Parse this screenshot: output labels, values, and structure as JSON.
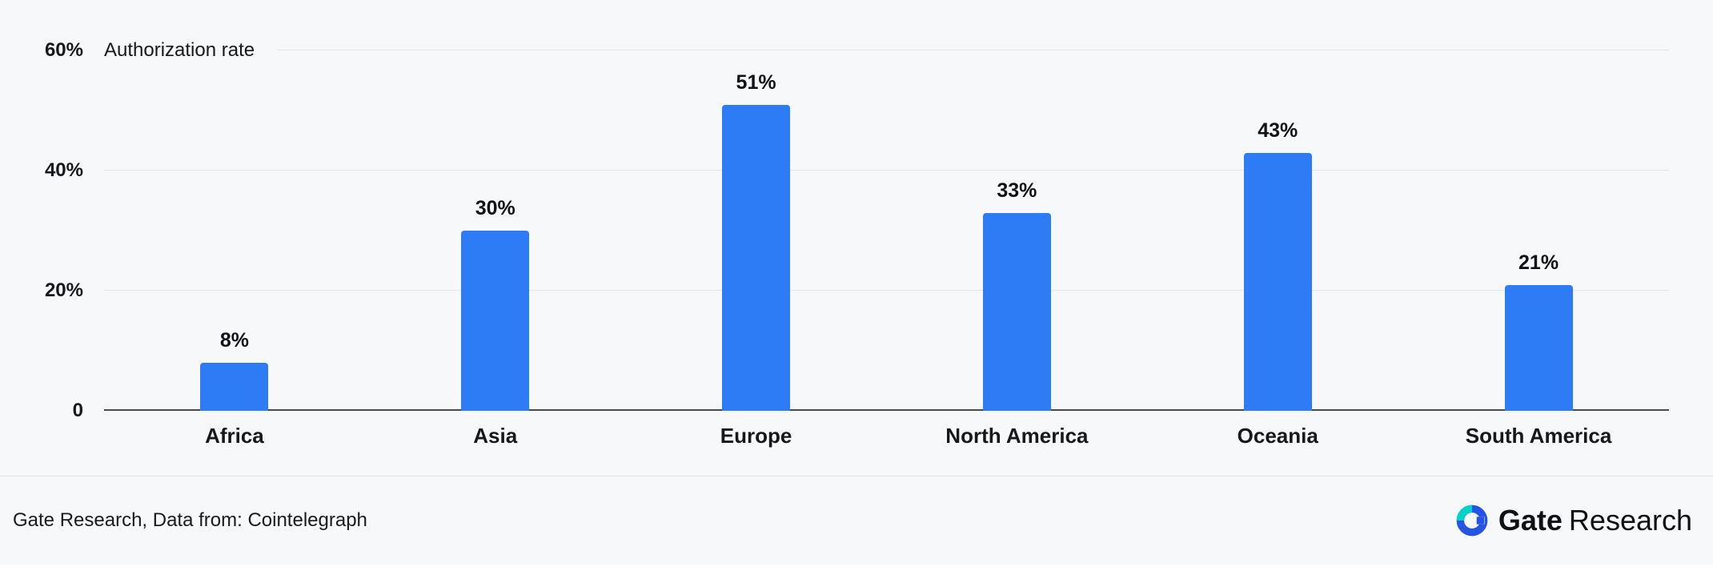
{
  "chart_data": {
    "type": "bar",
    "title": "Authorization rate",
    "categories": [
      "Africa",
      "Asia",
      "Europe",
      "North America",
      "Oceania",
      "South America"
    ],
    "values": [
      8,
      30,
      51,
      33,
      43,
      21
    ],
    "value_labels": [
      "8%",
      "30%",
      "51%",
      "33%",
      "43%",
      "21%"
    ],
    "xlabel": "",
    "ylabel": "",
    "ylim": [
      0,
      60
    ],
    "yticks": [
      {
        "value": 0,
        "label": "0"
      },
      {
        "value": 20,
        "label": "20%"
      },
      {
        "value": 40,
        "label": "40%"
      },
      {
        "value": 60,
        "label": "60%"
      }
    ],
    "grid": true,
    "legend_position": "none",
    "bar_color": "#2d7cf6"
  },
  "footer": {
    "source_text": "Gate Research, Data from: Cointelegraph",
    "brand": {
      "icon": "gate-logo-icon",
      "name_bold": "Gate",
      "name_regular": "Research"
    }
  },
  "colors": {
    "background": "#f7f8f9",
    "bar": "#2d7cf6",
    "gridline": "#e4e5e8",
    "axis": "#474a4f",
    "text": "#17181c",
    "divider": "#e2e3e6",
    "brand_blue": "#2354e6",
    "brand_teal": "#00d2c9"
  }
}
